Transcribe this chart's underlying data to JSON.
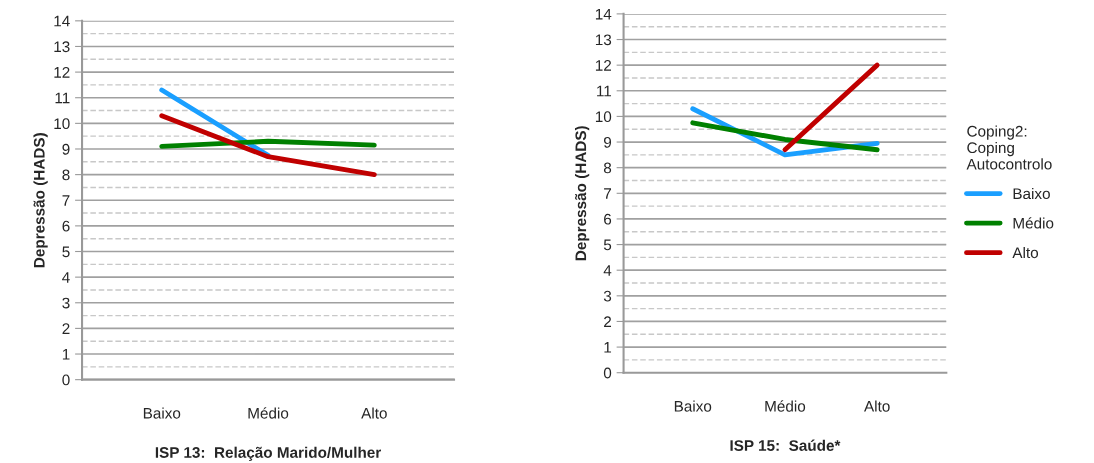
{
  "chart_data": [
    {
      "type": "line",
      "xlabel": "ISP 13:  Relação Marido/Mulher",
      "ylabel": "Depressão (HADS)",
      "categories": [
        "Baixo",
        "Médio",
        "Alto"
      ],
      "ylim": [
        0,
        14
      ],
      "yticks": [
        0,
        1,
        2,
        3,
        4,
        5,
        6,
        7,
        8,
        9,
        10,
        11,
        12,
        13,
        14
      ],
      "grid": "y",
      "legend": false,
      "series": [
        {
          "color": "#1a9fff",
          "values": [
            11.3,
            8.75,
            null
          ]
        },
        {
          "color": "#008000",
          "values": [
            9.1,
            9.3,
            9.15
          ]
        },
        {
          "color": "#c00000",
          "values": [
            10.3,
            8.7,
            8.0
          ]
        }
      ]
    },
    {
      "type": "line",
      "xlabel": "ISP 15:  Saúde*",
      "ylabel": "Depressão (HADS)",
      "categories": [
        "Baixo",
        "Médio",
        "Alto"
      ],
      "ylim": [
        0,
        14
      ],
      "yticks": [
        0,
        1,
        2,
        3,
        4,
        5,
        6,
        7,
        8,
        9,
        10,
        11,
        12,
        13,
        14
      ],
      "grid": "y",
      "legend": "right",
      "legend_title": "Coping2:\nCoping\nAutocontrolo",
      "series": [
        {
          "name": "Baixo",
          "color": "#1a9fff",
          "values": [
            10.3,
            8.5,
            8.95
          ]
        },
        {
          "name": "Médio",
          "color": "#008000",
          "values": [
            9.75,
            9.1,
            8.7
          ]
        },
        {
          "name": "Alto",
          "color": "#c00000",
          "values": [
            null,
            8.7,
            12.0
          ]
        }
      ]
    }
  ]
}
